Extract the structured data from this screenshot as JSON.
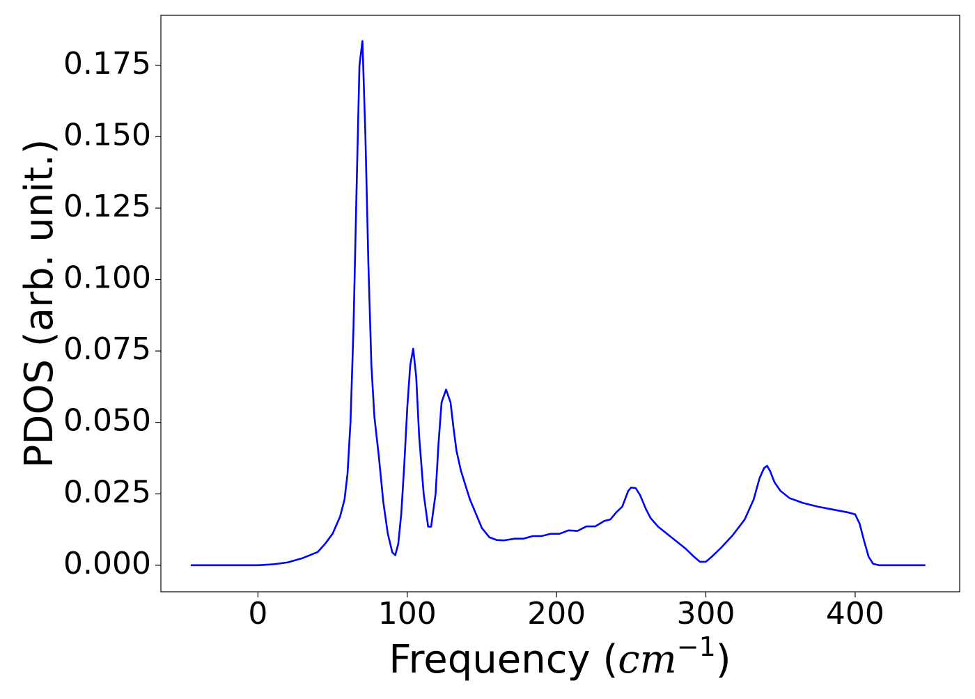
{
  "chart_data": {
    "type": "line",
    "ylabel": "PDOS (arb. unit.)",
    "xlabel": {
      "text": "Frequency (",
      "math": "cm",
      "superscript": "−1",
      "close": ")"
    },
    "x": [
      -45,
      0,
      10,
      20,
      30,
      40,
      45,
      50,
      55,
      58,
      60,
      62,
      64,
      66,
      68,
      70,
      72,
      74,
      76,
      78,
      81,
      84,
      87,
      90,
      92,
      94,
      96,
      98,
      100,
      102,
      104,
      106,
      108,
      111,
      114,
      116,
      119,
      121,
      123,
      126,
      129,
      131,
      133,
      136,
      139,
      142,
      146,
      150,
      155,
      160,
      165,
      172,
      178,
      184,
      190,
      196,
      202,
      208,
      214,
      220,
      226,
      232,
      236,
      240,
      244,
      248,
      250,
      253,
      256,
      260,
      263,
      268,
      274,
      280,
      286,
      292,
      296,
      300,
      304,
      310,
      318,
      326,
      332,
      336,
      339,
      341,
      343,
      346,
      350,
      356,
      365,
      375,
      385,
      395,
      400,
      403,
      406,
      409,
      412,
      416,
      447
    ],
    "series": [
      {
        "color": "#0000ff",
        "values": [
          0,
          0,
          0.0003,
          0.001,
          0.0025,
          0.0046,
          0.0075,
          0.011,
          0.017,
          0.023,
          0.032,
          0.05,
          0.083,
          0.13,
          0.175,
          0.1835,
          0.15,
          0.105,
          0.07,
          0.052,
          0.038,
          0.022,
          0.011,
          0.0045,
          0.0035,
          0.0075,
          0.018,
          0.035,
          0.055,
          0.07,
          0.0758,
          0.066,
          0.045,
          0.025,
          0.0135,
          0.0135,
          0.025,
          0.043,
          0.057,
          0.0615,
          0.057,
          0.048,
          0.04,
          0.033,
          0.028,
          0.023,
          0.018,
          0.013,
          0.0098,
          0.0088,
          0.0087,
          0.0093,
          0.0093,
          0.0102,
          0.0102,
          0.011,
          0.011,
          0.0122,
          0.012,
          0.0136,
          0.0136,
          0.0155,
          0.016,
          0.0185,
          0.0205,
          0.026,
          0.0272,
          0.027,
          0.0245,
          0.0195,
          0.0165,
          0.0135,
          0.011,
          0.0085,
          0.006,
          0.003,
          0.0012,
          0.0012,
          0.003,
          0.006,
          0.0105,
          0.016,
          0.023,
          0.0305,
          0.034,
          0.0348,
          0.033,
          0.029,
          0.026,
          0.0235,
          0.0218,
          0.0205,
          0.0195,
          0.0185,
          0.0178,
          0.0145,
          0.0085,
          0.003,
          0.0005,
          0,
          0
        ]
      }
    ],
    "xlim": [
      -65,
      470
    ],
    "xticks": [
      0,
      100,
      200,
      300,
      400
    ],
    "ylim": [
      -0.0093,
      0.1925
    ],
    "yticks": [
      {
        "value": 0,
        "label": "0.000"
      },
      0.025,
      {
        "value": 0.05,
        "label": "0.050"
      },
      0.075,
      {
        "value": 0.1,
        "label": "0.100"
      },
      0.125,
      {
        "value": 0.15,
        "label": "0.150"
      },
      0.175
    ]
  }
}
